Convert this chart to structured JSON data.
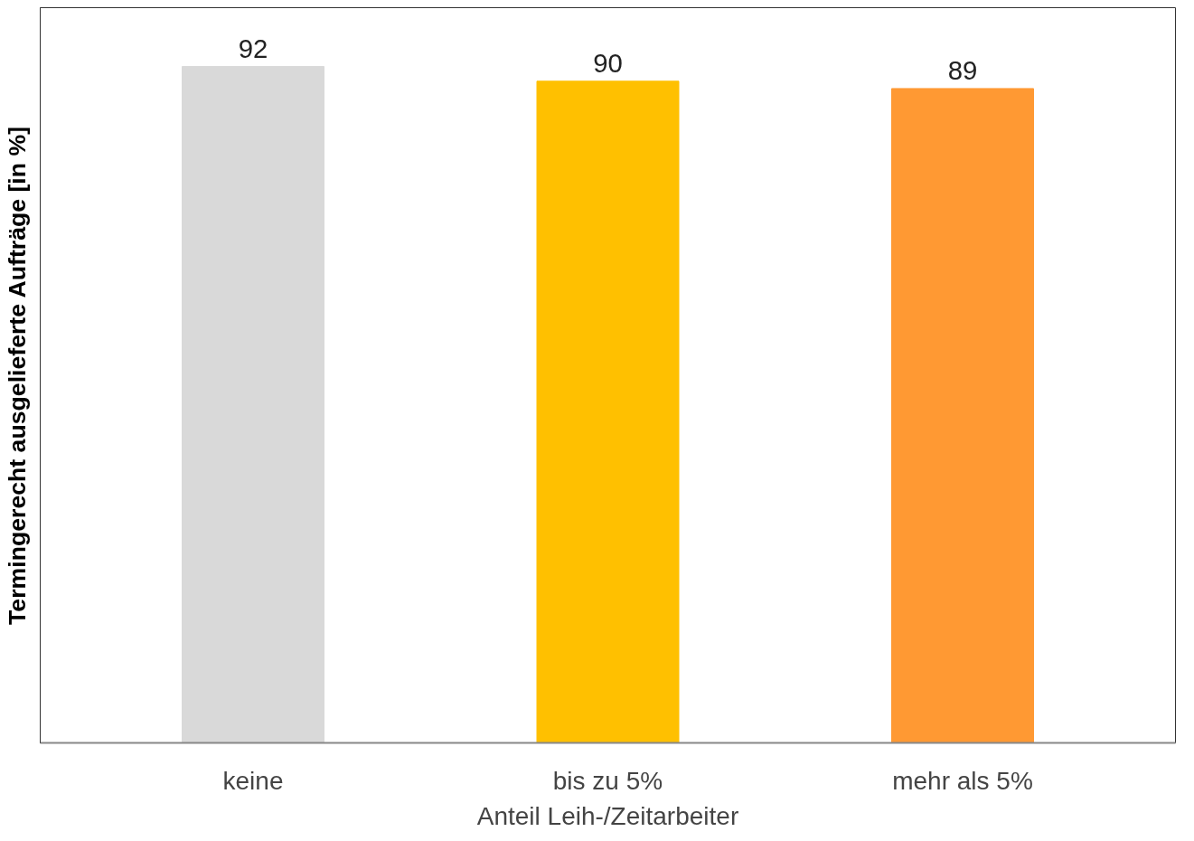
{
  "chart_data": {
    "type": "bar",
    "xlabel": "Anteil Leih-/Zeitarbeiter",
    "ylabel": "Termingerecht ausgelieferte Aufträge [in %]",
    "categories": [
      "keine",
      "bis zu 5%",
      "mehr als 5%"
    ],
    "values": [
      92,
      90,
      89
    ],
    "colors": [
      "#d9d9d9",
      "#ffc000",
      "#ff9933"
    ],
    "ylim": [
      0,
      100
    ],
    "data_labels": true,
    "grid": false,
    "tick_labels": "x"
  }
}
